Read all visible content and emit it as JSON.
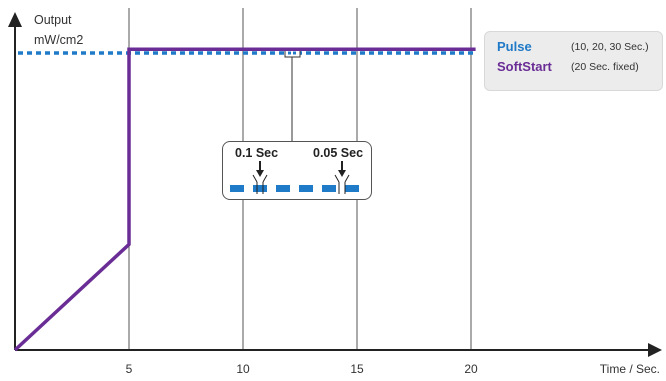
{
  "chart_data": {
    "type": "line",
    "ylabel_line1": "Output",
    "ylabel_line2": "mW/cm2",
    "xlabel": "Time / Sec.",
    "x_ticks": [
      5,
      10,
      15,
      20
    ],
    "xlim": [
      0,
      28
    ],
    "gridlines_x": [
      5,
      10,
      15,
      20
    ],
    "series": [
      {
        "name": "Pulse",
        "note": "(10, 20, 30 Sec.)",
        "color": "#1f7ac8",
        "style": "dotted",
        "level": "max",
        "x_range": [
          0,
          20.2
        ]
      },
      {
        "name": "SoftStart",
        "note": "(20 Sec. fixed)",
        "color": "#6a2d96",
        "style": "solid",
        "points": [
          {
            "x": 0,
            "y": 0
          },
          {
            "x": 5,
            "y": 0.33
          },
          {
            "x": 5,
            "y": 0.94
          },
          {
            "x": 20.2,
            "y": 0.94
          }
        ]
      }
    ],
    "callout": {
      "label_on": "0.1 Sec",
      "label_off": "0.05 Sec",
      "pulse_pattern_segments": 7
    }
  }
}
